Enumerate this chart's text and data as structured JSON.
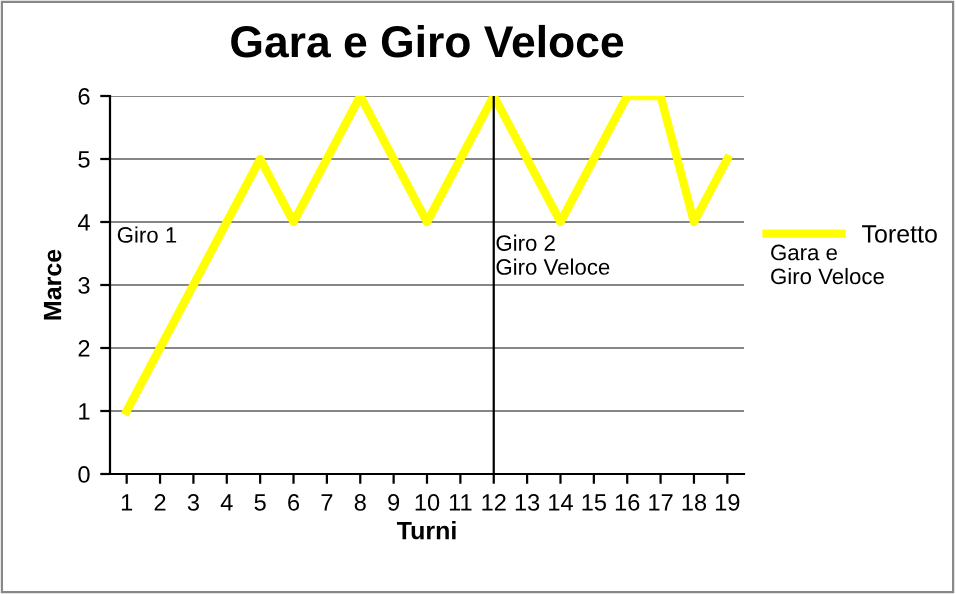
{
  "chart_data": {
    "type": "line",
    "title": "Gara e Giro Veloce",
    "xlabel": "Turni",
    "ylabel": "Marce",
    "categories": [
      "1",
      "2",
      "3",
      "4",
      "5",
      "6",
      "7",
      "8",
      "9",
      "10",
      "11",
      "12",
      "13",
      "14",
      "15",
      "16",
      "17",
      "18",
      "19"
    ],
    "series": [
      {
        "name": "Toretto",
        "color": "#ffff00",
        "values": [
          1,
          2,
          3,
          4,
          5,
          4,
          5,
          6,
          5,
          4,
          5,
          6,
          5,
          4,
          5,
          6,
          6,
          4,
          5
        ]
      }
    ],
    "ylim": [
      0,
      6
    ],
    "yticks": [
      0,
      1,
      2,
      3,
      4,
      5,
      6
    ],
    "grid": "y",
    "legend": "right",
    "marker": "none",
    "line_style": "solid",
    "ref_lines": [
      {
        "axis": "x",
        "value": "12",
        "label": "Giro 2\nGiro Veloce",
        "color": "#000000"
      }
    ],
    "annotations": [
      "Giro 1",
      "Gara e\nGiro Veloce"
    ]
  }
}
